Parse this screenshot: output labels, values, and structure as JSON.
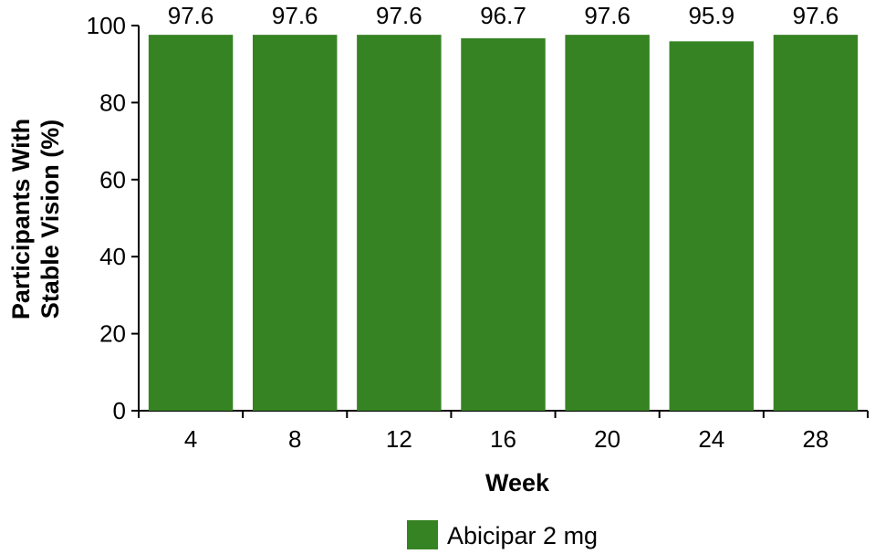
{
  "chart_data": {
    "type": "bar",
    "categories": [
      "4",
      "8",
      "12",
      "16",
      "20",
      "24",
      "28"
    ],
    "series": [
      {
        "name": "Abicipar 2 mg",
        "values": [
          97.6,
          97.6,
          97.6,
          96.7,
          97.6,
          95.9,
          97.6
        ],
        "color": "#368323"
      }
    ],
    "data_labels": [
      "97.6",
      "97.6",
      "97.6",
      "96.7",
      "97.6",
      "95.9",
      "97.6"
    ],
    "xlabel": "Week",
    "ylabel_lines": [
      "Participants With",
      "Stable Vision (%)"
    ],
    "ylim": [
      0,
      100
    ],
    "yticks": [
      0,
      20,
      40,
      60,
      80,
      100
    ],
    "grid": false,
    "legend_position": "bottom-center"
  }
}
